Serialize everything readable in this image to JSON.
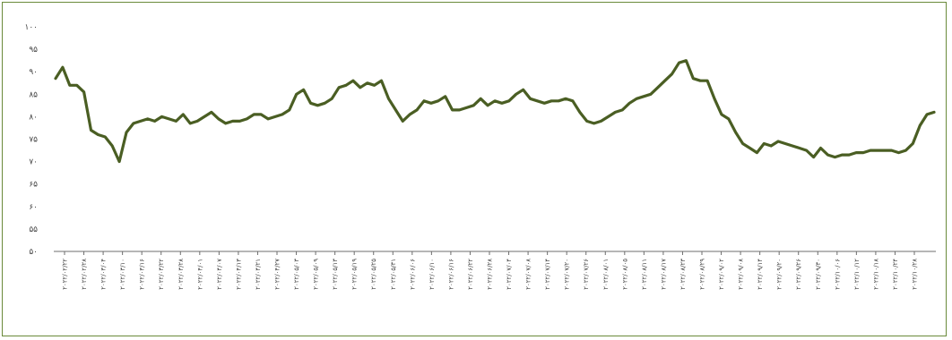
{
  "chart_data": {
    "type": "line",
    "title": "",
    "xlabel": "",
    "ylabel": "",
    "ylim": [
      50,
      100
    ],
    "grid": false,
    "legend": "none",
    "line_color": "#4a5e23",
    "y_tick_values": [
      50,
      55,
      60,
      65,
      70,
      75,
      80,
      85,
      90,
      95,
      100
    ],
    "y_tick_labels": [
      "۵۰",
      "۵۵",
      "۶۰",
      "۶۵",
      "۷۰",
      "۷۵",
      "۸۰",
      "۸۵",
      "۹۰",
      "۹۵",
      "۱۰۰"
    ],
    "x_tick_labels": [
      "۲۰۲۲/۰۲/۲۲",
      "۲۰۲۲/۰۲/۲۸",
      "۲۰۲۲/۰۳/۰۴",
      "۲۰۲۲/۰۳/۱۰",
      "۲۰۲۲/۰۳/۱۶",
      "۲۰۲۲/۰۳/۲۲",
      "۲۰۲۲/۰۳/۲۸",
      "۲۰۲۲/۰۴/۰۱",
      "۲۰۲۲/۰۴/۰۷",
      "۲۰۲۲/۰۴/۱۳",
      "۲۰۲۲/۰۴/۲۱",
      "۲۰۲۲/۰۴/۲۷",
      "۲۰۲۲/۰۵/۰۳",
      "۲۰۲۲/۰۵/۰۹",
      "۲۰۲۲/۰۵/۱۳",
      "۲۰۲۲/۰۵/۱۹",
      "۲۰۲۲/۰۵/۲۵",
      "۲۰۲۲/۰۵/۳۱",
      "۲۰۲۲/۰۶/۰۶",
      "۲۰۲۲/۰۶/۱۰",
      "۲۰۲۲/۰۶/۱۶",
      "۲۰۲۲/۰۶/۲۲",
      "۲۰۲۲/۰۶/۲۸",
      "۲۰۲۲/۰۷/۰۴",
      "۲۰۲۲/۰۷/۰۸",
      "۲۰۲۲/۰۷/۱۴",
      "۲۰۲۲/۰۷/۲۰",
      "۲۰۲۲/۰۷/۲۶",
      "۲۰۲۲/۰۸/۰۱",
      "۲۰۲۲/۰۸/۰۵",
      "۲۰۲۲/۰۸/۱۱",
      "۲۰۲۲/۰۸/۱۷",
      "۲۰۲۲/۰۸/۲۳",
      "۲۰۲۲/۰۸/۲۹",
      "۲۰۲۲/۰۹/۰۲",
      "۲۰۲۲/۰۹/۰۸",
      "۲۰۲۲/۰۹/۱۴",
      "۲۰۲۲/۰۹/۲۰",
      "۲۰۲۲/۰۹/۲۶",
      "۲۰۲۲/۰۹/۳۰",
      "۲۰۲۲/۱۰/۰۶",
      "۲۰۲۲/۱۰/۱۲",
      "۲۰۲۲/۱۰/۱۸",
      "۲۰۲۲/۱۰/۲۴",
      "۲۰۲۲/۱۰/۲۸"
    ],
    "series": [
      {
        "values": [
          88.5,
          91.0,
          87.0,
          87.0,
          85.5,
          77.0,
          76.0,
          75.5,
          73.5,
          70.0,
          76.5,
          78.5,
          79.0,
          79.5,
          79.0,
          80.0,
          79.5,
          79.0,
          80.5,
          78.5,
          79.0,
          80.0,
          81.0,
          79.5,
          78.5,
          79.0,
          79.0,
          79.5,
          80.5,
          80.5,
          79.5,
          80.0,
          80.5,
          81.5,
          85.0,
          86.0,
          83.0,
          82.5,
          83.0,
          84.0,
          86.5,
          87.0,
          88.0,
          86.5,
          87.5,
          87.0,
          88.0,
          84.0,
          81.5,
          79.0,
          80.5,
          81.5,
          83.5,
          83.0,
          83.5,
          84.5,
          81.5,
          81.5,
          82.0,
          82.5,
          84.0,
          82.5,
          83.5,
          83.0,
          83.5,
          85.0,
          86.0,
          84.0,
          83.5,
          83.0,
          83.5,
          83.5,
          84.0,
          83.5,
          81.0,
          79.0,
          78.5,
          79.0,
          80.0,
          81.0,
          81.5,
          83.0,
          84.0,
          84.5,
          85.0,
          86.5,
          88.0,
          89.5,
          92.0,
          92.5,
          88.5,
          88.0,
          88.0,
          84.0,
          80.5,
          79.5,
          76.5,
          74.0,
          73.0,
          72.0,
          74.0,
          73.5,
          74.5,
          74.0,
          73.5,
          73.0,
          72.5,
          71.0,
          73.0,
          71.5,
          71.0,
          71.5,
          71.5,
          72.0,
          72.0,
          72.5,
          72.5,
          72.5,
          72.5,
          72.0,
          72.5,
          74.0,
          78.0,
          80.5,
          81.0
        ]
      }
    ]
  }
}
